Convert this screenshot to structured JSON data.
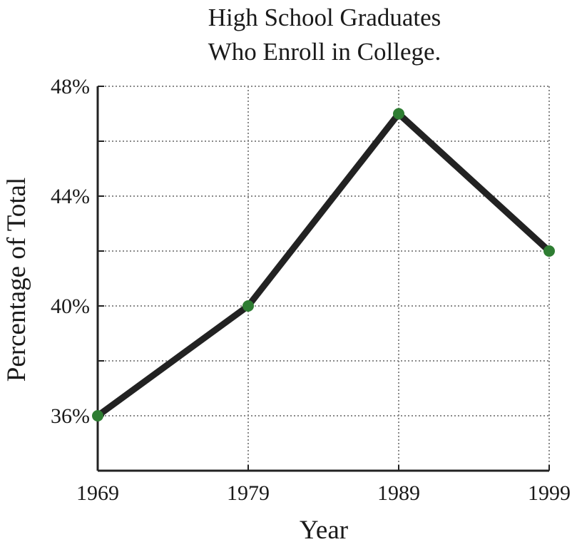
{
  "chart_data": {
    "type": "line",
    "title": [
      "High School Graduates",
      "Who Enroll in College."
    ],
    "xlabel": "Year",
    "ylabel": "Percentage of Total",
    "categories": [
      "1969",
      "1979",
      "1989",
      "1999"
    ],
    "x": [
      1969,
      1979,
      1989,
      1999
    ],
    "series": [
      {
        "values": [
          36,
          40,
          47,
          42
        ]
      }
    ],
    "ylim": [
      34,
      48
    ],
    "y_ticks": [
      36,
      40,
      44,
      48
    ],
    "y_tick_labels": [
      "36%",
      "40%",
      "44%",
      "48%"
    ],
    "y_minor_ticks": [
      38,
      42,
      46
    ],
    "grid": true,
    "colors": {
      "line": "#222222",
      "marker": "#2e7d32",
      "grid": "#8a8a8a",
      "axis": "#222222"
    }
  }
}
